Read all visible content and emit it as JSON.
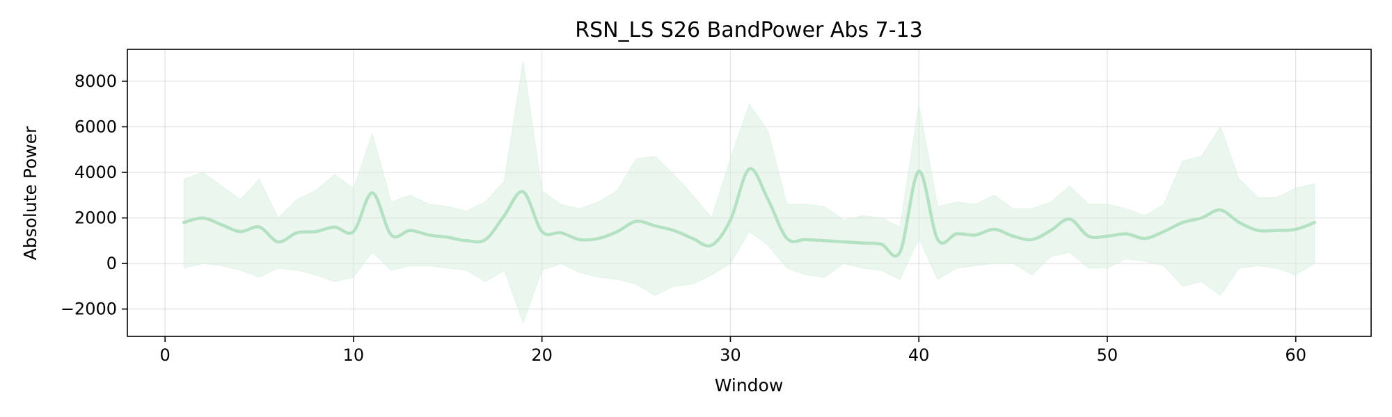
{
  "chart_data": {
    "type": "line",
    "title": "RSN_LS S26 BandPower Abs 7-13",
    "xlabel": "Window",
    "ylabel": "Absolute Power",
    "xlim": [
      -2,
      64
    ],
    "ylim": [
      -3200,
      9400
    ],
    "xticks": [
      0,
      10,
      20,
      30,
      40,
      50,
      60
    ],
    "xtick_labels": [
      "0",
      "10",
      "20",
      "30",
      "40",
      "50",
      "60"
    ],
    "yticks": [
      -2000,
      0,
      2000,
      4000,
      6000,
      8000
    ],
    "ytick_labels": [
      "−2000",
      "0",
      "2000",
      "4000",
      "6000",
      "8000"
    ],
    "grid": true,
    "colors": {
      "line": "#b5e1c3",
      "band": "#d6eedd"
    },
    "series": [
      {
        "x": [
          1,
          2,
          3,
          4,
          5,
          6,
          7,
          8,
          9,
          10,
          11,
          12,
          13,
          14,
          15,
          16,
          17,
          18,
          19,
          20,
          21,
          22,
          23,
          24,
          25,
          26,
          27,
          28,
          29,
          30,
          31,
          32,
          33,
          34,
          35,
          36,
          37,
          38,
          39,
          40,
          41,
          42,
          43,
          44,
          45,
          46,
          47,
          48,
          49,
          50,
          51,
          52,
          53,
          54,
          55,
          56,
          57,
          58,
          59,
          60,
          61
        ],
        "y": [
          1800,
          2000,
          1700,
          1400,
          1600,
          950,
          1350,
          1400,
          1600,
          1400,
          3100,
          1250,
          1450,
          1250,
          1150,
          1000,
          1050,
          2100,
          3150,
          1400,
          1350,
          1050,
          1100,
          1400,
          1850,
          1650,
          1450,
          1100,
          800,
          1900,
          4150,
          2800,
          1100,
          1050,
          1000,
          950,
          900,
          850,
          500,
          4050,
          1050,
          1300,
          1250,
          1500,
          1200,
          1050,
          1450,
          1950,
          1200,
          1200,
          1300,
          1100,
          1400,
          1800,
          2000,
          2350,
          1800,
          1450,
          1450,
          1500,
          1800
        ],
        "upper": [
          3700,
          4000,
          3400,
          2800,
          3700,
          2000,
          2800,
          3200,
          3900,
          3300,
          5700,
          2700,
          3000,
          2600,
          2500,
          2300,
          2700,
          3600,
          8900,
          3200,
          2600,
          2400,
          2700,
          3200,
          4600,
          4700,
          3900,
          3000,
          2000,
          4600,
          7000,
          5800,
          2600,
          2600,
          2500,
          1900,
          2100,
          2000,
          1600,
          7000,
          2500,
          2700,
          2600,
          3000,
          2400,
          2400,
          2700,
          3400,
          2600,
          2600,
          2400,
          2100,
          2600,
          4500,
          4700,
          6000,
          3700,
          2900,
          2900,
          3300,
          3500
        ],
        "lower": [
          -200,
          0,
          -100,
          -300,
          -600,
          -200,
          -300,
          -500,
          -800,
          -600,
          500,
          -300,
          -100,
          -100,
          -200,
          -300,
          -800,
          -300,
          -2600,
          -300,
          0,
          -400,
          -600,
          -700,
          -900,
          -1400,
          -1000,
          -900,
          -500,
          0,
          1400,
          800,
          -200,
          -500,
          -600,
          0,
          -200,
          -300,
          -700,
          1100,
          -700,
          -200,
          -100,
          0,
          0,
          -500,
          300,
          500,
          -200,
          -200,
          200,
          100,
          -100,
          -1000,
          -800,
          -1400,
          -200,
          -100,
          -200,
          -500,
          0
        ]
      }
    ]
  }
}
